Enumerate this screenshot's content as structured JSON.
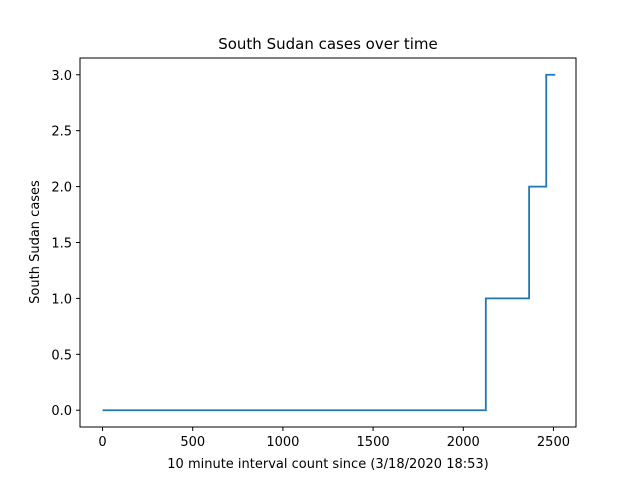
{
  "chart_data": {
    "type": "line",
    "title": "South Sudan cases over time",
    "xlabel": "10 minute interval count since (3/18/2020 18:53)",
    "ylabel": "South Sudan cases",
    "xlim": [
      -125,
      2625
    ],
    "ylim": [
      -0.15,
      3.15
    ],
    "xticks": [
      0,
      500,
      1000,
      1500,
      2000,
      2500
    ],
    "xtick_labels": [
      "0",
      "500",
      "1000",
      "1500",
      "2000",
      "2500"
    ],
    "yticks": [
      0.0,
      0.5,
      1.0,
      1.5,
      2.0,
      2.5,
      3.0
    ],
    "ytick_labels": [
      "0.0",
      "0.5",
      "1.0",
      "1.5",
      "2.0",
      "2.5",
      "3.0"
    ],
    "grid": false,
    "series": [
      {
        "color": "#1f77b4",
        "x": [
          0,
          2125,
          2125,
          2365,
          2365,
          2460,
          2460,
          2510
        ],
        "y": [
          0,
          0,
          1,
          1,
          2,
          2,
          3,
          3
        ]
      }
    ]
  }
}
